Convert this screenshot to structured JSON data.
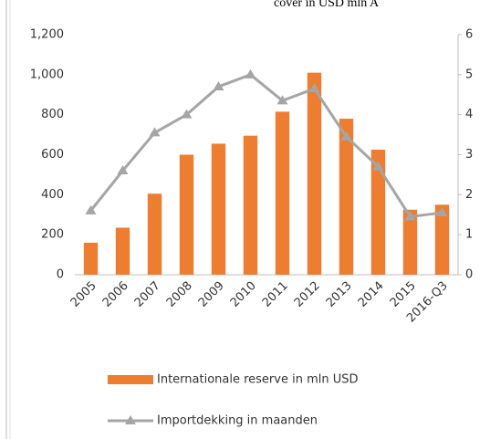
{
  "chart_data": {
    "type": "bar_line",
    "title": "cover in USD mln A",
    "categories": [
      "2005",
      "2006",
      "2007",
      "2008",
      "2009",
      "2010",
      "2011",
      "2012",
      "2013",
      "2014",
      "2015",
      "2016-Q3"
    ],
    "series": [
      {
        "name": "Internationale reserve in mln USD",
        "color": "#ed7d31",
        "type": "bar",
        "values": [
          160,
          235,
          405,
          600,
          655,
          695,
          815,
          1010,
          780,
          625,
          325,
          350
        ]
      },
      {
        "name": "Importdekking in maanden",
        "color": "#a5a5a5",
        "type": "line",
        "axis": "y2",
        "values": [
          1.6,
          2.6,
          3.55,
          4.0,
          4.7,
          5.0,
          4.35,
          4.65,
          3.45,
          2.7,
          1.45,
          1.55
        ]
      }
    ],
    "ylim": [
      0,
      1200
    ],
    "yticks": [
      0,
      200,
      400,
      600,
      800,
      {
        "value": 1000,
        "label": "1,000"
      },
      {
        "value": 1200,
        "label": "1,200"
      }
    ],
    "y2lim": [
      0,
      6
    ],
    "y2ticks": [
      0,
      1,
      2,
      3,
      4,
      5,
      6
    ],
    "legend": "bottom"
  }
}
